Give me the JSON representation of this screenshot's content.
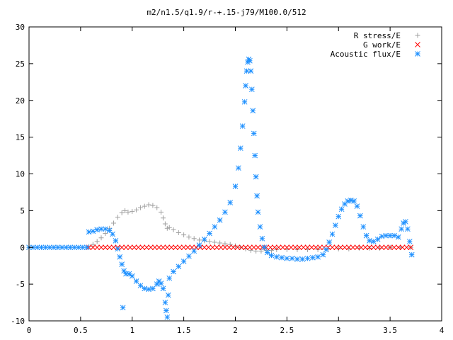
{
  "chart_data": {
    "type": "scatter",
    "title": "m2/n1.5/q1.9/r-+.15-j79/M100.0/512",
    "xlabel": "",
    "ylabel": "",
    "xlim": [
      0,
      4
    ],
    "ylim": [
      -10,
      30
    ],
    "xticks": [
      0,
      0.5,
      1,
      1.5,
      2,
      2.5,
      3,
      3.5,
      4
    ],
    "xtick_labels": [
      "0",
      "0.5",
      "1",
      "1.5",
      "2",
      "2.5",
      "3",
      "3.5",
      "4"
    ],
    "yticks": [
      -10,
      -5,
      0,
      5,
      10,
      15,
      20,
      25,
      30
    ],
    "ytick_labels": [
      "-10",
      "-5",
      "0",
      "5",
      "10",
      "15",
      "20",
      "25",
      "30"
    ],
    "grid": false,
    "legend_position": "top-right",
    "series": [
      {
        "name": "R stress/E",
        "marker": "plus",
        "color": "#a0a0a0",
        "points": [
          [
            0.58,
            0.1
          ],
          [
            0.62,
            0.4
          ],
          [
            0.66,
            0.8
          ],
          [
            0.7,
            1.3
          ],
          [
            0.74,
            1.9
          ],
          [
            0.78,
            2.6
          ],
          [
            0.82,
            3.3
          ],
          [
            0.86,
            4.1
          ],
          [
            0.9,
            4.7
          ],
          [
            0.93,
            5.0
          ],
          [
            0.96,
            4.8
          ],
          [
            1.0,
            4.9
          ],
          [
            1.04,
            5.1
          ],
          [
            1.08,
            5.4
          ],
          [
            1.12,
            5.6
          ],
          [
            1.16,
            5.8
          ],
          [
            1.2,
            5.7
          ],
          [
            1.24,
            5.4
          ],
          [
            1.28,
            4.8
          ],
          [
            1.3,
            4.0
          ],
          [
            1.32,
            3.2
          ],
          [
            1.34,
            2.6
          ],
          [
            1.36,
            2.7
          ],
          [
            1.4,
            2.4
          ],
          [
            1.45,
            2.0
          ],
          [
            1.5,
            1.7
          ],
          [
            1.55,
            1.4
          ],
          [
            1.6,
            1.2
          ],
          [
            1.65,
            1.0
          ],
          [
            1.7,
            0.9
          ],
          [
            1.75,
            0.8
          ],
          [
            1.8,
            0.7
          ],
          [
            1.85,
            0.6
          ],
          [
            1.9,
            0.5
          ],
          [
            1.95,
            0.4
          ],
          [
            2.0,
            0.2
          ],
          [
            2.05,
            0.0
          ],
          [
            2.1,
            -0.2
          ],
          [
            2.15,
            -0.4
          ],
          [
            2.2,
            -0.5
          ],
          [
            2.25,
            -0.5
          ],
          [
            2.3,
            -0.4
          ],
          [
            2.35,
            -0.4
          ],
          [
            2.4,
            -0.3
          ],
          [
            2.5,
            -0.3
          ],
          [
            2.6,
            -0.3
          ],
          [
            2.7,
            -0.3
          ],
          [
            2.8,
            -0.3
          ],
          [
            2.9,
            -0.2
          ],
          [
            3.0,
            -0.2
          ],
          [
            3.1,
            -0.2
          ],
          [
            3.2,
            -0.1
          ],
          [
            3.3,
            -0.1
          ],
          [
            3.4,
            -0.1
          ],
          [
            3.5,
            0.0
          ],
          [
            3.6,
            0.0
          ],
          [
            3.7,
            0.0
          ]
        ]
      },
      {
        "name": "G work/E",
        "marker": "cross",
        "color": "#ff0000",
        "points": [
          [
            0.58,
            0.0
          ],
          [
            0.62,
            0.0
          ],
          [
            0.66,
            0.0
          ],
          [
            0.7,
            0.0
          ],
          [
            0.74,
            0.0
          ],
          [
            0.78,
            0.0
          ],
          [
            0.82,
            0.0
          ],
          [
            0.86,
            0.0
          ],
          [
            0.9,
            0.0
          ],
          [
            0.94,
            0.0
          ],
          [
            0.98,
            0.0
          ],
          [
            1.02,
            0.0
          ],
          [
            1.06,
            0.0
          ],
          [
            1.1,
            0.0
          ],
          [
            1.14,
            0.0
          ],
          [
            1.18,
            0.0
          ],
          [
            1.22,
            0.0
          ],
          [
            1.26,
            0.0
          ],
          [
            1.3,
            0.0
          ],
          [
            1.34,
            0.0
          ],
          [
            1.38,
            0.0
          ],
          [
            1.42,
            0.0
          ],
          [
            1.46,
            0.0
          ],
          [
            1.5,
            0.0
          ],
          [
            1.54,
            0.0
          ],
          [
            1.58,
            0.0
          ],
          [
            1.62,
            0.0
          ],
          [
            1.66,
            0.0
          ],
          [
            1.7,
            0.0
          ],
          [
            1.74,
            0.0
          ],
          [
            1.78,
            0.0
          ],
          [
            1.82,
            0.0
          ],
          [
            1.86,
            0.0
          ],
          [
            1.9,
            0.0
          ],
          [
            1.94,
            0.0
          ],
          [
            1.98,
            0.0
          ],
          [
            2.02,
            0.0
          ],
          [
            2.06,
            0.0
          ],
          [
            2.1,
            0.0
          ],
          [
            2.14,
            0.0
          ],
          [
            2.18,
            0.0
          ],
          [
            2.22,
            0.0
          ],
          [
            2.26,
            0.0
          ],
          [
            2.3,
            0.0
          ],
          [
            2.34,
            0.0
          ],
          [
            2.38,
            0.0
          ],
          [
            2.42,
            0.0
          ],
          [
            2.46,
            0.0
          ],
          [
            2.5,
            0.0
          ],
          [
            2.54,
            0.0
          ],
          [
            2.58,
            0.0
          ],
          [
            2.62,
            0.0
          ],
          [
            2.66,
            0.0
          ],
          [
            2.7,
            0.0
          ],
          [
            2.74,
            0.0
          ],
          [
            2.78,
            0.0
          ],
          [
            2.82,
            0.0
          ],
          [
            2.86,
            0.0
          ],
          [
            2.9,
            0.0
          ],
          [
            2.94,
            0.0
          ],
          [
            2.98,
            0.0
          ],
          [
            3.02,
            0.0
          ],
          [
            3.06,
            0.0
          ],
          [
            3.1,
            0.0
          ],
          [
            3.14,
            0.0
          ],
          [
            3.18,
            0.0
          ],
          [
            3.22,
            0.0
          ],
          [
            3.26,
            0.0
          ],
          [
            3.3,
            0.0
          ],
          [
            3.34,
            0.0
          ],
          [
            3.38,
            0.0
          ],
          [
            3.42,
            0.0
          ],
          [
            3.46,
            0.0
          ],
          [
            3.5,
            0.0
          ],
          [
            3.54,
            0.0
          ],
          [
            3.58,
            0.0
          ],
          [
            3.62,
            0.0
          ],
          [
            3.66,
            0.0
          ],
          [
            3.7,
            0.0
          ]
        ]
      },
      {
        "name": "Acoustic flux/E",
        "marker": "star",
        "color": "#1e90ff",
        "points": [
          [
            0.0,
            0.0
          ],
          [
            0.04,
            0.0
          ],
          [
            0.08,
            0.0
          ],
          [
            0.12,
            0.0
          ],
          [
            0.16,
            0.0
          ],
          [
            0.2,
            0.0
          ],
          [
            0.24,
            0.0
          ],
          [
            0.28,
            0.0
          ],
          [
            0.32,
            0.0
          ],
          [
            0.36,
            0.0
          ],
          [
            0.4,
            0.0
          ],
          [
            0.44,
            0.0
          ],
          [
            0.48,
            0.0
          ],
          [
            0.52,
            0.0
          ],
          [
            0.56,
            0.0
          ],
          [
            0.58,
            2.1
          ],
          [
            0.62,
            2.2
          ],
          [
            0.66,
            2.4
          ],
          [
            0.7,
            2.5
          ],
          [
            0.74,
            2.5
          ],
          [
            0.78,
            2.3
          ],
          [
            0.81,
            1.8
          ],
          [
            0.84,
            0.9
          ],
          [
            0.86,
            -0.2
          ],
          [
            0.88,
            -1.3
          ],
          [
            0.9,
            -2.3
          ],
          [
            0.92,
            -3.2
          ],
          [
            0.91,
            -8.2
          ],
          [
            0.94,
            -3.6
          ],
          [
            0.97,
            -3.6
          ],
          [
            1.0,
            -3.9
          ],
          [
            1.04,
            -4.6
          ],
          [
            1.08,
            -5.2
          ],
          [
            1.12,
            -5.6
          ],
          [
            1.16,
            -5.7
          ],
          [
            1.2,
            -5.6
          ],
          [
            1.24,
            -5.0
          ],
          [
            1.26,
            -4.6
          ],
          [
            1.28,
            -4.9
          ],
          [
            1.3,
            -5.6
          ],
          [
            1.32,
            -7.5
          ],
          [
            1.33,
            -8.6
          ],
          [
            1.34,
            -9.5
          ],
          [
            1.35,
            -6.5
          ],
          [
            1.36,
            -4.2
          ],
          [
            1.4,
            -3.3
          ],
          [
            1.45,
            -2.6
          ],
          [
            1.5,
            -1.9
          ],
          [
            1.55,
            -1.2
          ],
          [
            1.6,
            -0.5
          ],
          [
            1.65,
            0.3
          ],
          [
            1.7,
            1.1
          ],
          [
            1.75,
            1.9
          ],
          [
            1.8,
            2.8
          ],
          [
            1.85,
            3.7
          ],
          [
            1.9,
            4.8
          ],
          [
            1.95,
            6.1
          ],
          [
            2.0,
            8.3
          ],
          [
            2.03,
            10.8
          ],
          [
            2.05,
            13.5
          ],
          [
            2.07,
            16.5
          ],
          [
            2.09,
            19.8
          ],
          [
            2.1,
            22.0
          ],
          [
            2.11,
            24.0
          ],
          [
            2.12,
            25.2
          ],
          [
            2.13,
            25.6
          ],
          [
            2.14,
            25.4
          ],
          [
            2.15,
            24.0
          ],
          [
            2.16,
            21.5
          ],
          [
            2.17,
            18.6
          ],
          [
            2.18,
            15.5
          ],
          [
            2.19,
            12.5
          ],
          [
            2.2,
            9.6
          ],
          [
            2.21,
            7.0
          ],
          [
            2.22,
            4.8
          ],
          [
            2.24,
            2.8
          ],
          [
            2.26,
            1.2
          ],
          [
            2.28,
            0.0
          ],
          [
            2.31,
            -0.7
          ],
          [
            2.35,
            -1.1
          ],
          [
            2.4,
            -1.3
          ],
          [
            2.45,
            -1.4
          ],
          [
            2.5,
            -1.5
          ],
          [
            2.55,
            -1.5
          ],
          [
            2.6,
            -1.6
          ],
          [
            2.65,
            -1.6
          ],
          [
            2.7,
            -1.5
          ],
          [
            2.75,
            -1.4
          ],
          [
            2.8,
            -1.3
          ],
          [
            2.85,
            -1.0
          ],
          [
            2.88,
            -0.3
          ],
          [
            2.91,
            0.7
          ],
          [
            2.94,
            1.8
          ],
          [
            2.97,
            3.0
          ],
          [
            3.0,
            4.2
          ],
          [
            3.03,
            5.2
          ],
          [
            3.06,
            5.9
          ],
          [
            3.09,
            6.3
          ],
          [
            3.12,
            6.4
          ],
          [
            3.15,
            6.3
          ],
          [
            3.18,
            5.6
          ],
          [
            3.21,
            4.3
          ],
          [
            3.24,
            2.8
          ],
          [
            3.27,
            1.6
          ],
          [
            3.3,
            0.9
          ],
          [
            3.34,
            0.8
          ],
          [
            3.38,
            1.1
          ],
          [
            3.42,
            1.5
          ],
          [
            3.46,
            1.6
          ],
          [
            3.5,
            1.6
          ],
          [
            3.54,
            1.6
          ],
          [
            3.58,
            1.4
          ],
          [
            3.61,
            2.5
          ],
          [
            3.63,
            3.3
          ],
          [
            3.65,
            3.5
          ],
          [
            3.67,
            2.5
          ],
          [
            3.69,
            0.8
          ],
          [
            3.71,
            -1.0
          ]
        ]
      }
    ]
  }
}
